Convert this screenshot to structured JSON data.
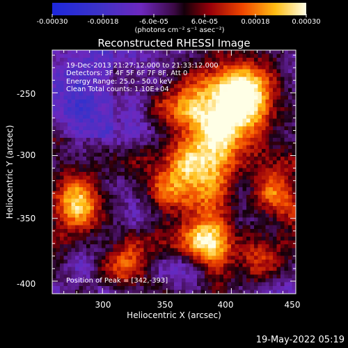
{
  "colorbar": {
    "ticks": [
      "-0.00030",
      "-0.00018",
      "-6.0e-05",
      "6.0e-05",
      "0.00018",
      "0.00030"
    ],
    "tick_values": [
      -0.0003,
      -0.00018,
      -6e-05,
      6e-05,
      0.00018,
      0.0003
    ],
    "range": [
      -0.0003,
      0.0003
    ],
    "unit_label": "(photons cm⁻² s⁻¹ asec⁻²)"
  },
  "image": {
    "title": "Reconstructed RHESSI Image",
    "annotation_lines": [
      "19-Dec-2013 21:27:12.000 to 21:33:12.000",
      "Detectors: 3F 4F 5F 6F 7F 8F, Att 0",
      "Energy Range: 25.0 - 50.0 keV",
      "Clean     Total counts: 1.10E+04"
    ],
    "peak_label": "Position of Peak = [342,-393]"
  },
  "axes": {
    "xlabel": "Heliocentric X (arcsec)",
    "ylabel": "Heliocentric Y (arcsec)",
    "x_ticks": [
      "300",
      "350",
      "400",
      "450"
    ],
    "y_ticks": [
      "-250",
      "-300",
      "-350",
      "-400"
    ],
    "x_range": [
      261,
      450
    ],
    "y_range": [
      -410,
      -216
    ]
  },
  "footer": {
    "timestamp": "19-May-2022 05:19"
  }
}
